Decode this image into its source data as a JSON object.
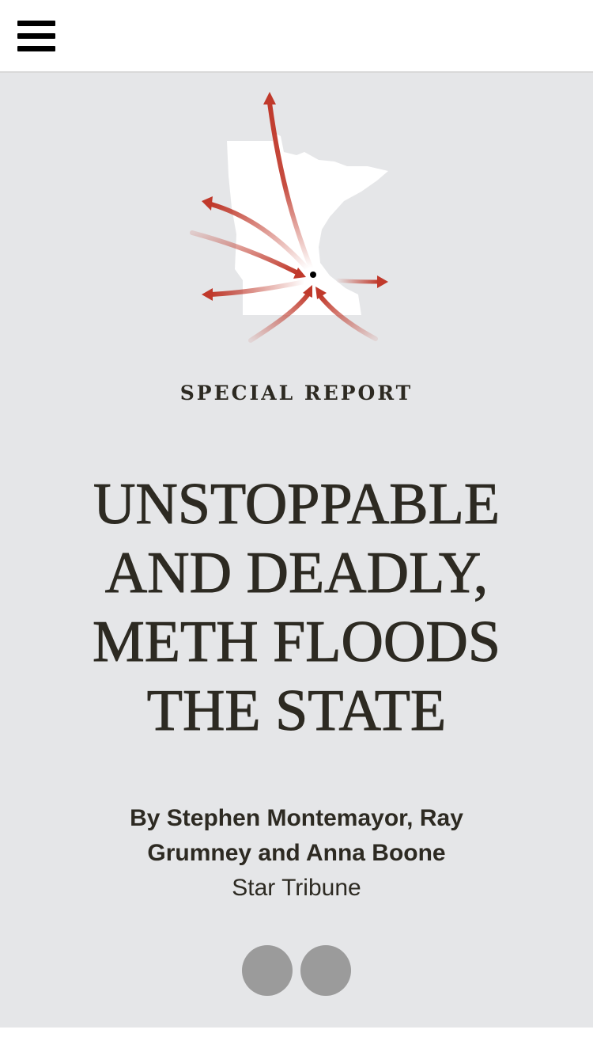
{
  "header": {
    "menu_icon": "hamburger-menu-icon"
  },
  "graphic": {
    "icon": "minnesota-map-arrows-icon",
    "map_color": "#ffffff",
    "arrow_color": "#c0392b"
  },
  "article": {
    "kicker": "SPECIAL REPORT",
    "headline": "UNSTOPPABLE AND DEADLY, METH FLOODS THE STATE",
    "byline_authors": "By Stephen Montemayor, Ray Grumney and Anna Boone",
    "byline_org": "Star Tribune"
  },
  "share": {
    "buttons": [
      "share-button-1",
      "share-button-2"
    ]
  },
  "colors": {
    "hero_bg": "#e5e6e8",
    "text": "#2d2a22",
    "share_dot": "#9b9b9b"
  }
}
